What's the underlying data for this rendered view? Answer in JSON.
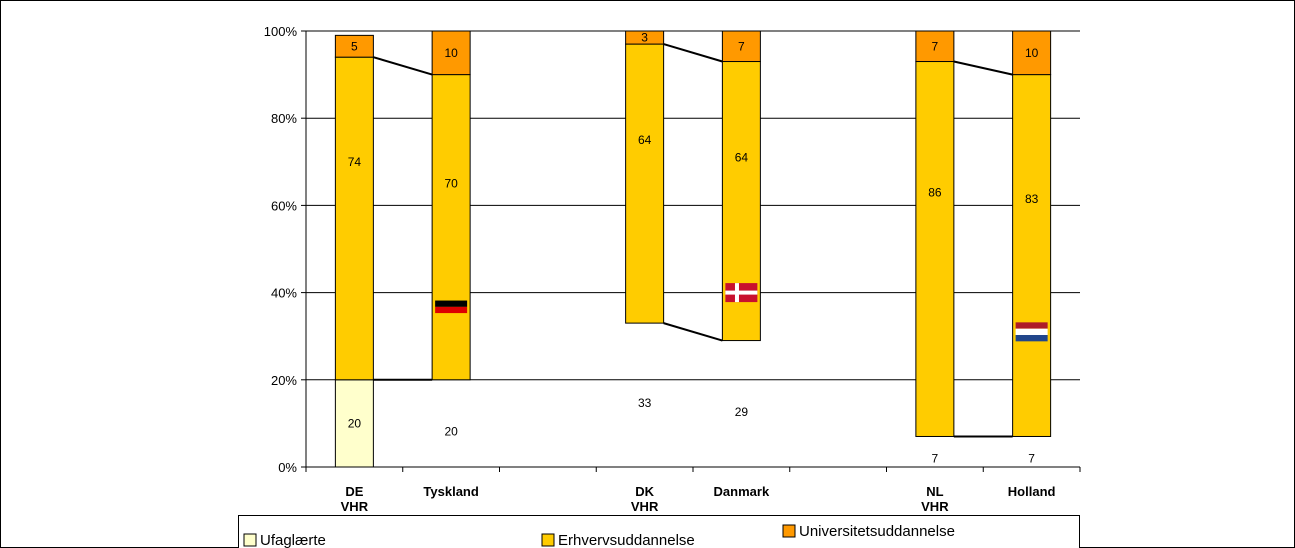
{
  "chart_data": {
    "type": "bar",
    "stacked": true,
    "percent_axis": true,
    "categories": [
      [
        "DE",
        "VHR"
      ],
      [
        "Tyskland"
      ],
      [
        "DK",
        "VHR"
      ],
      [
        "Danmark"
      ],
      [
        "NL",
        "VHR"
      ],
      [
        "Holland"
      ]
    ],
    "series": [
      {
        "name": "Ufaglærte",
        "values": [
          20,
          20,
          33,
          29,
          7,
          7
        ],
        "color": "#FFFFCC",
        "labels_shown": [
          true,
          true,
          true,
          true,
          true,
          true
        ],
        "fill_shown": [
          true,
          false,
          false,
          false,
          false,
          false
        ]
      },
      {
        "name": "Erhvervsuddannelse",
        "values": [
          74,
          70,
          64,
          64,
          86,
          83
        ],
        "color": "#FFCC00"
      },
      {
        "name": "Universitetsuddannelse",
        "values": [
          5,
          10,
          3,
          7,
          7,
          10
        ],
        "color": "#FF9900"
      }
    ],
    "connector_lines": true,
    "flags": [
      {
        "category_index": 1,
        "icon": "germany-flag-icon",
        "colors": [
          "#000000",
          "#DD0000",
          "#FFCE00"
        ],
        "at_value": 36
      },
      {
        "category_index": 3,
        "icon": "denmark-flag-icon",
        "colors": [
          "#C8102E",
          "#FFFFFF"
        ],
        "at_value": 40
      },
      {
        "category_index": 5,
        "icon": "netherlands-flag-icon",
        "colors": [
          "#AE1C28",
          "#FFFFFF",
          "#21468B"
        ],
        "at_value": 31
      }
    ],
    "ylim": [
      0,
      100
    ],
    "yticks": [
      "0%",
      "20%",
      "40%",
      "60%",
      "80%",
      "100%"
    ],
    "grid": true,
    "legend_position": "bottom"
  }
}
